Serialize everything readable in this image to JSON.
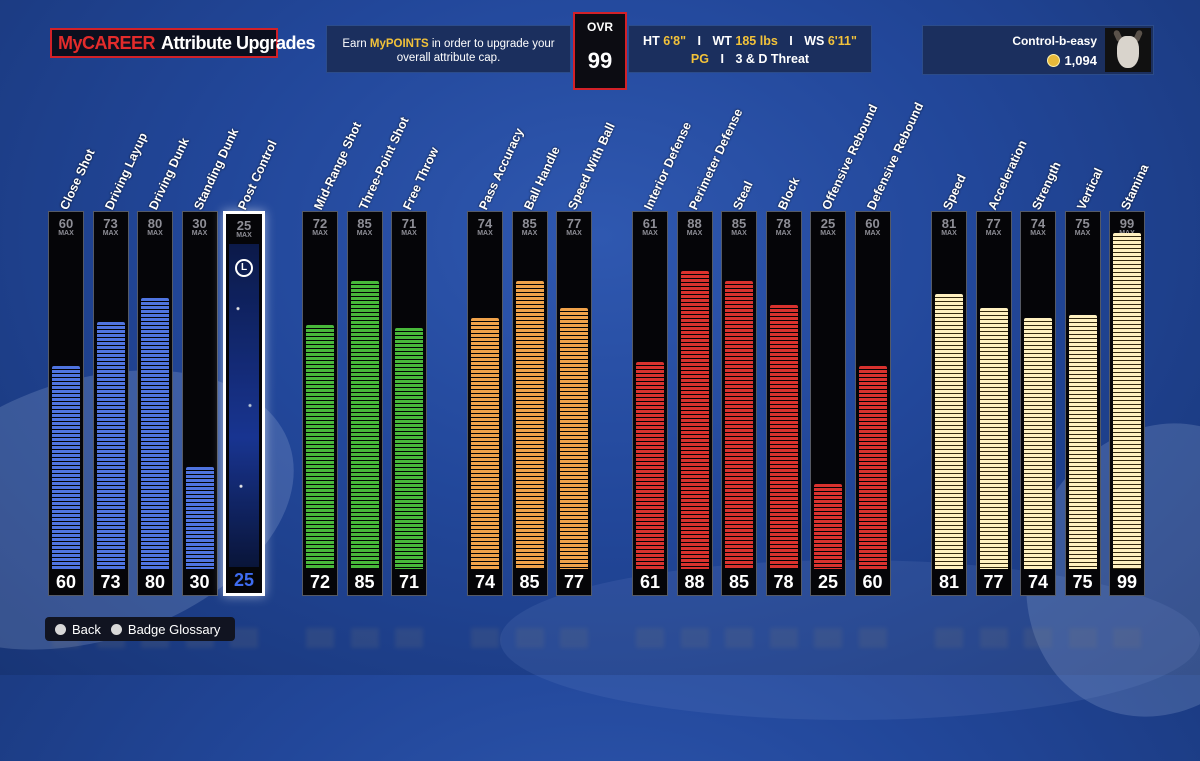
{
  "header": {
    "title_part1": "MyCAREER",
    "title_part2": "Attribute Upgrades",
    "info_prefix": "Earn ",
    "info_highlight": "MyPOINTS",
    "info_line1_rest": " in order to upgrade your",
    "info_line2": "overall attribute cap.",
    "ovr_label": "OVR",
    "ovr_value": "99",
    "ht_label": "HT",
    "ht_value": "6'8\"",
    "wt_label": "WT",
    "wt_value": "185 lbs",
    "ws_label": "WS",
    "ws_value": "6'11\"",
    "position": "PG",
    "archetype": "3 & D Threat",
    "separator": "I"
  },
  "user": {
    "name": "Control-b-easy",
    "points": "1,094"
  },
  "max_label": "MAX",
  "post_control_button": "L",
  "colors": {
    "inside": "#4f74e0",
    "shooting": "#48b83a",
    "playmaking": "#f0a24a",
    "defense": "#d9322e",
    "athleticism": "#fff1c0",
    "selected_value": "#3e6cf0"
  },
  "attributes": [
    {
      "label": "Close Shot",
      "value": 60,
      "max": 60,
      "group": "inside"
    },
    {
      "label": "Driving Layup",
      "value": 73,
      "max": 73,
      "group": "inside"
    },
    {
      "label": "Driving Dunk",
      "value": 80,
      "max": 80,
      "group": "inside"
    },
    {
      "label": "Standing Dunk",
      "value": 30,
      "max": 30,
      "group": "inside"
    },
    {
      "label": "Post Control",
      "value": 25,
      "max": 25,
      "group": "inside",
      "selected": true
    },
    {
      "label": "Mid-Range Shot",
      "value": 72,
      "max": 72,
      "group": "shooting"
    },
    {
      "label": "Three-Point Shot",
      "value": 85,
      "max": 85,
      "group": "shooting"
    },
    {
      "label": "Free Throw",
      "value": 71,
      "max": 71,
      "group": "shooting"
    },
    {
      "label": "Pass Accuracy",
      "value": 74,
      "max": 74,
      "group": "playmaking"
    },
    {
      "label": "Ball Handle",
      "value": 85,
      "max": 85,
      "group": "playmaking"
    },
    {
      "label": "Speed With Ball",
      "value": 77,
      "max": 77,
      "group": "playmaking"
    },
    {
      "label": "Interior Defense",
      "value": 61,
      "max": 61,
      "group": "defense"
    },
    {
      "label": "Perimeter Defense",
      "value": 88,
      "max": 88,
      "group": "defense"
    },
    {
      "label": "Steal",
      "value": 85,
      "max": 85,
      "group": "defense"
    },
    {
      "label": "Block",
      "value": 78,
      "max": 78,
      "group": "defense"
    },
    {
      "label": "Offensive Rebound",
      "value": 25,
      "max": 25,
      "group": "defense"
    },
    {
      "label": "Defensive Rebound",
      "value": 60,
      "max": 60,
      "group": "defense"
    },
    {
      "label": "Speed",
      "value": 81,
      "max": 81,
      "group": "athleticism"
    },
    {
      "label": "Acceleration",
      "value": 77,
      "max": 77,
      "group": "athleticism"
    },
    {
      "label": "Strength",
      "value": 74,
      "max": 74,
      "group": "athleticism"
    },
    {
      "label": "Vertical",
      "value": 75,
      "max": 75,
      "group": "athleticism"
    },
    {
      "label": "Stamina",
      "value": 99,
      "max": 99,
      "group": "athleticism"
    }
  ],
  "footer": {
    "back_label": "Back",
    "glossary_label": "Badge Glossary"
  }
}
